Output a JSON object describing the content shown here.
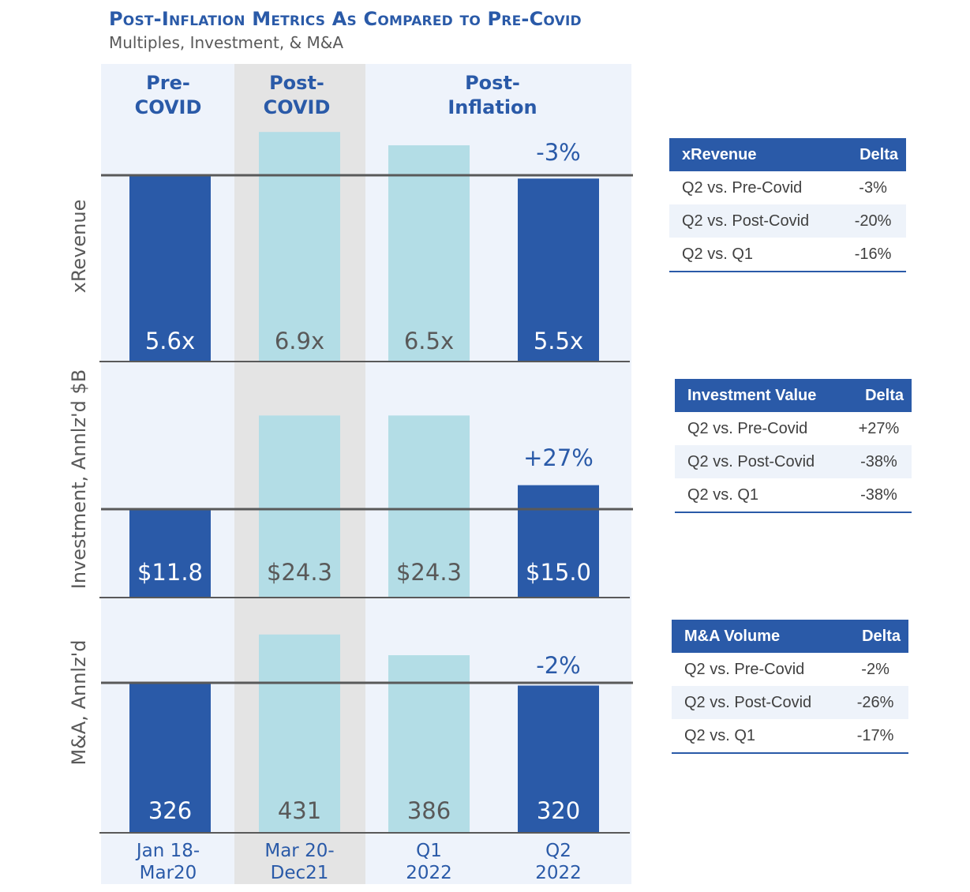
{
  "header": {
    "title": "Post-Inflation Metrics As Compared to Pre-Covid",
    "subtitle": "Multiples, Investment, & M&A"
  },
  "colors": {
    "title": "#2a5aa8",
    "bar_primary": "#2a5aa8",
    "bar_secondary": "#b3dde6",
    "panel_bg": "#eef3fb",
    "shade_bg": "#e4e4e4",
    "baseline": "#595959",
    "negative": "#e04848",
    "positive": "#4ca636"
  },
  "chart_data": {
    "type": "bar",
    "period_headers": [
      {
        "line1": "Pre-",
        "line2": "COVID"
      },
      {
        "line1": "Post-",
        "line2": "COVID"
      },
      {
        "line1": "Post-",
        "line2": "Inflation"
      }
    ],
    "categories": [
      {
        "line1": "Jan 18-",
        "line2": "Mar20"
      },
      {
        "line1": "Mar 20-",
        "line2": "Dec21"
      },
      {
        "line1": "Q1",
        "line2": "2022"
      },
      {
        "line1": "Q2",
        "line2": "2022"
      }
    ],
    "panels": [
      {
        "ylabel": "xRevenue",
        "values": [
          5.6,
          6.9,
          6.5,
          5.5
        ],
        "labels": [
          "5.6x",
          "6.9x",
          "6.5x",
          "5.5x"
        ],
        "annotation": "-3%",
        "reference": 5.6,
        "ymax": 7.6
      },
      {
        "ylabel": "Investment, Annlz'd $B",
        "values": [
          11.8,
          24.3,
          24.3,
          15.0
        ],
        "labels": [
          "$11.8",
          "$24.3",
          "$24.3",
          "$15.0"
        ],
        "annotation": "+27%",
        "reference": 11.8,
        "ymax": 26.8
      },
      {
        "ylabel": "M&A, Annlz'd",
        "values": [
          326,
          431,
          386,
          320
        ],
        "labels": [
          "326",
          "431",
          "386",
          "320"
        ],
        "annotation": "-2%",
        "reference": 326,
        "ymax": 470
      }
    ]
  },
  "tables": [
    {
      "header": "xRevenue",
      "delta_header": "Delta",
      "rows": [
        {
          "label": "Q2 vs. Pre-Covid",
          "value": "-3%"
        },
        {
          "label": "Q2 vs. Post-Covid",
          "value": "-20%"
        },
        {
          "label": "Q2 vs. Q1",
          "value": "-16%"
        }
      ]
    },
    {
      "header": "Investment Value",
      "delta_header": "Delta",
      "rows": [
        {
          "label": "Q2 vs. Pre-Covid",
          "value": "+27%"
        },
        {
          "label": "Q2 vs. Post-Covid",
          "value": "-38%"
        },
        {
          "label": "Q2 vs. Q1",
          "value": "-38%"
        }
      ]
    },
    {
      "header": "M&A Volume",
      "delta_header": "Delta",
      "rows": [
        {
          "label": "Q2 vs. Pre-Covid",
          "value": "-2%"
        },
        {
          "label": "Q2 vs. Post-Covid",
          "value": "-26%"
        },
        {
          "label": "Q2 vs. Q1",
          "value": "-17%"
        }
      ]
    }
  ]
}
